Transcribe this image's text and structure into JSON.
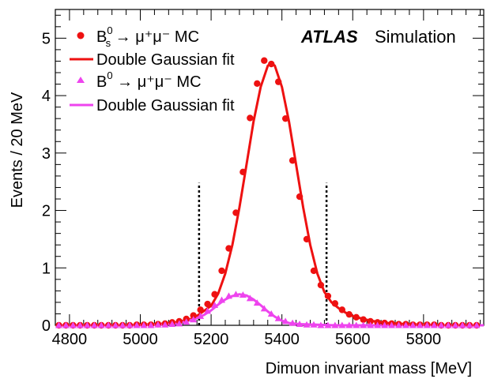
{
  "chart_data": {
    "type": "scatter",
    "experiment": "ATLAS",
    "label": "Simulation",
    "xlabel": "Dimuon invariant mass [MeV]",
    "ylabel": "Events / 20 MeV",
    "xlim": [
      4760,
      5970
    ],
    "ylim": [
      0,
      5.5
    ],
    "xticks": [
      4800,
      5000,
      5200,
      5400,
      5600,
      5800
    ],
    "yticks": [
      0,
      1,
      2,
      3,
      4,
      5
    ],
    "grid": false,
    "legend_position": "top-left",
    "window_lines": [
      5166,
      5526
    ],
    "series": [
      {
        "id": "bs_mc",
        "name_parts": {
          "base": "B",
          "sub": "s",
          "sup": "0",
          "rest": " → μ⁺μ⁻ MC"
        },
        "kind": "points",
        "marker": "circle",
        "color": "#ee1111",
        "x": [
          4770,
          4790,
          4810,
          4830,
          4850,
          4870,
          4890,
          4910,
          4930,
          4950,
          4970,
          4990,
          5010,
          5030,
          5050,
          5070,
          5090,
          5110,
          5130,
          5150,
          5170,
          5190,
          5210,
          5230,
          5250,
          5270,
          5290,
          5310,
          5330,
          5350,
          5370,
          5390,
          5410,
          5430,
          5450,
          5470,
          5490,
          5510,
          5530,
          5550,
          5570,
          5590,
          5610,
          5630,
          5650,
          5670,
          5690,
          5710,
          5730,
          5750,
          5770,
          5790,
          5810,
          5830,
          5850,
          5870,
          5890,
          5910,
          5930,
          5950
        ],
        "y": [
          0.0,
          0.0,
          0.0,
          0.0,
          0.0,
          0.0,
          0.0,
          0.0,
          0.0,
          0.0,
          0.0,
          0.01,
          0.01,
          0.01,
          0.02,
          0.03,
          0.05,
          0.07,
          0.11,
          0.17,
          0.27,
          0.37,
          0.54,
          0.95,
          1.34,
          1.96,
          2.67,
          3.61,
          4.21,
          4.61,
          4.55,
          4.24,
          3.6,
          2.87,
          2.24,
          1.5,
          0.95,
          0.7,
          0.51,
          0.38,
          0.27,
          0.19,
          0.14,
          0.1,
          0.07,
          0.05,
          0.04,
          0.03,
          0.02,
          0.02,
          0.01,
          0.01,
          0.01,
          0.01,
          0.0,
          0.0,
          0.0,
          0.0,
          0.0,
          0.0
        ]
      },
      {
        "id": "bs_fit",
        "name": "Double Gaussian fit",
        "kind": "curve",
        "color": "#ee1111",
        "x": [
          4770,
          4800,
          4850,
          4900,
          4950,
          5000,
          5050,
          5100,
          5150,
          5200,
          5220,
          5240,
          5260,
          5280,
          5300,
          5320,
          5340,
          5360,
          5370,
          5380,
          5400,
          5420,
          5440,
          5460,
          5480,
          5500,
          5520,
          5540,
          5560,
          5580,
          5600,
          5650,
          5700,
          5750,
          5800,
          5850,
          5900,
          5950,
          5970
        ],
        "y": [
          0.0,
          0.0,
          0.0,
          0.0,
          0.0,
          0.01,
          0.02,
          0.05,
          0.12,
          0.34,
          0.55,
          0.9,
          1.4,
          2.05,
          2.8,
          3.55,
          4.15,
          4.52,
          4.57,
          4.52,
          4.15,
          3.55,
          2.8,
          2.05,
          1.4,
          0.9,
          0.58,
          0.4,
          0.3,
          0.22,
          0.16,
          0.08,
          0.04,
          0.02,
          0.01,
          0.0,
          0.0,
          0.0,
          0.0
        ]
      },
      {
        "id": "b0_mc",
        "name_parts": {
          "base": "B",
          "sub": "",
          "sup": "0",
          "rest": " → μ⁺μ⁻ MC"
        },
        "kind": "points",
        "marker": "triangle",
        "color": "#ee44ee",
        "x": [
          4770,
          4790,
          4810,
          4830,
          4850,
          4870,
          4890,
          4910,
          4930,
          4950,
          4970,
          4990,
          5010,
          5030,
          5050,
          5070,
          5090,
          5110,
          5130,
          5150,
          5170,
          5190,
          5210,
          5230,
          5250,
          5270,
          5290,
          5310,
          5330,
          5350,
          5370,
          5390,
          5410,
          5430,
          5450,
          5470,
          5490,
          5510,
          5530,
          5550,
          5570,
          5590,
          5610,
          5630,
          5650,
          5670,
          5690,
          5710,
          5730,
          5750,
          5770,
          5790,
          5810,
          5830,
          5850,
          5870,
          5890,
          5910,
          5930,
          5950
        ],
        "y": [
          0.0,
          0.0,
          0.0,
          0.0,
          0.0,
          0.0,
          0.0,
          0.0,
          0.0,
          0.0,
          0.0,
          0.0,
          0.0,
          0.0,
          0.01,
          0.01,
          0.02,
          0.03,
          0.06,
          0.1,
          0.16,
          0.25,
          0.35,
          0.44,
          0.51,
          0.54,
          0.53,
          0.47,
          0.39,
          0.29,
          0.2,
          0.12,
          0.07,
          0.04,
          0.02,
          0.01,
          0.01,
          0.0,
          0.0,
          0.0,
          0.0,
          0.0,
          0.0,
          0.0,
          0.0,
          0.0,
          0.0,
          0.0,
          0.0,
          0.0,
          0.0,
          0.0,
          0.0,
          0.0,
          0.0,
          0.0,
          0.0,
          0.0,
          0.0,
          0.0
        ]
      },
      {
        "id": "b0_fit",
        "name": "Double Gaussian fit",
        "kind": "curve",
        "color": "#ee44ee",
        "x": [
          4770,
          4900,
          5000,
          5050,
          5100,
          5150,
          5180,
          5200,
          5220,
          5240,
          5260,
          5280,
          5300,
          5320,
          5340,
          5360,
          5380,
          5400,
          5420,
          5450,
          5500,
          5550,
          5600,
          5700,
          5800,
          5900,
          5970
        ],
        "y": [
          0.0,
          0.0,
          0.0,
          0.01,
          0.03,
          0.1,
          0.18,
          0.26,
          0.36,
          0.45,
          0.51,
          0.54,
          0.52,
          0.45,
          0.35,
          0.24,
          0.15,
          0.08,
          0.04,
          0.02,
          0.01,
          0.0,
          0.0,
          0.0,
          0.0,
          0.0,
          0.0
        ]
      }
    ]
  }
}
